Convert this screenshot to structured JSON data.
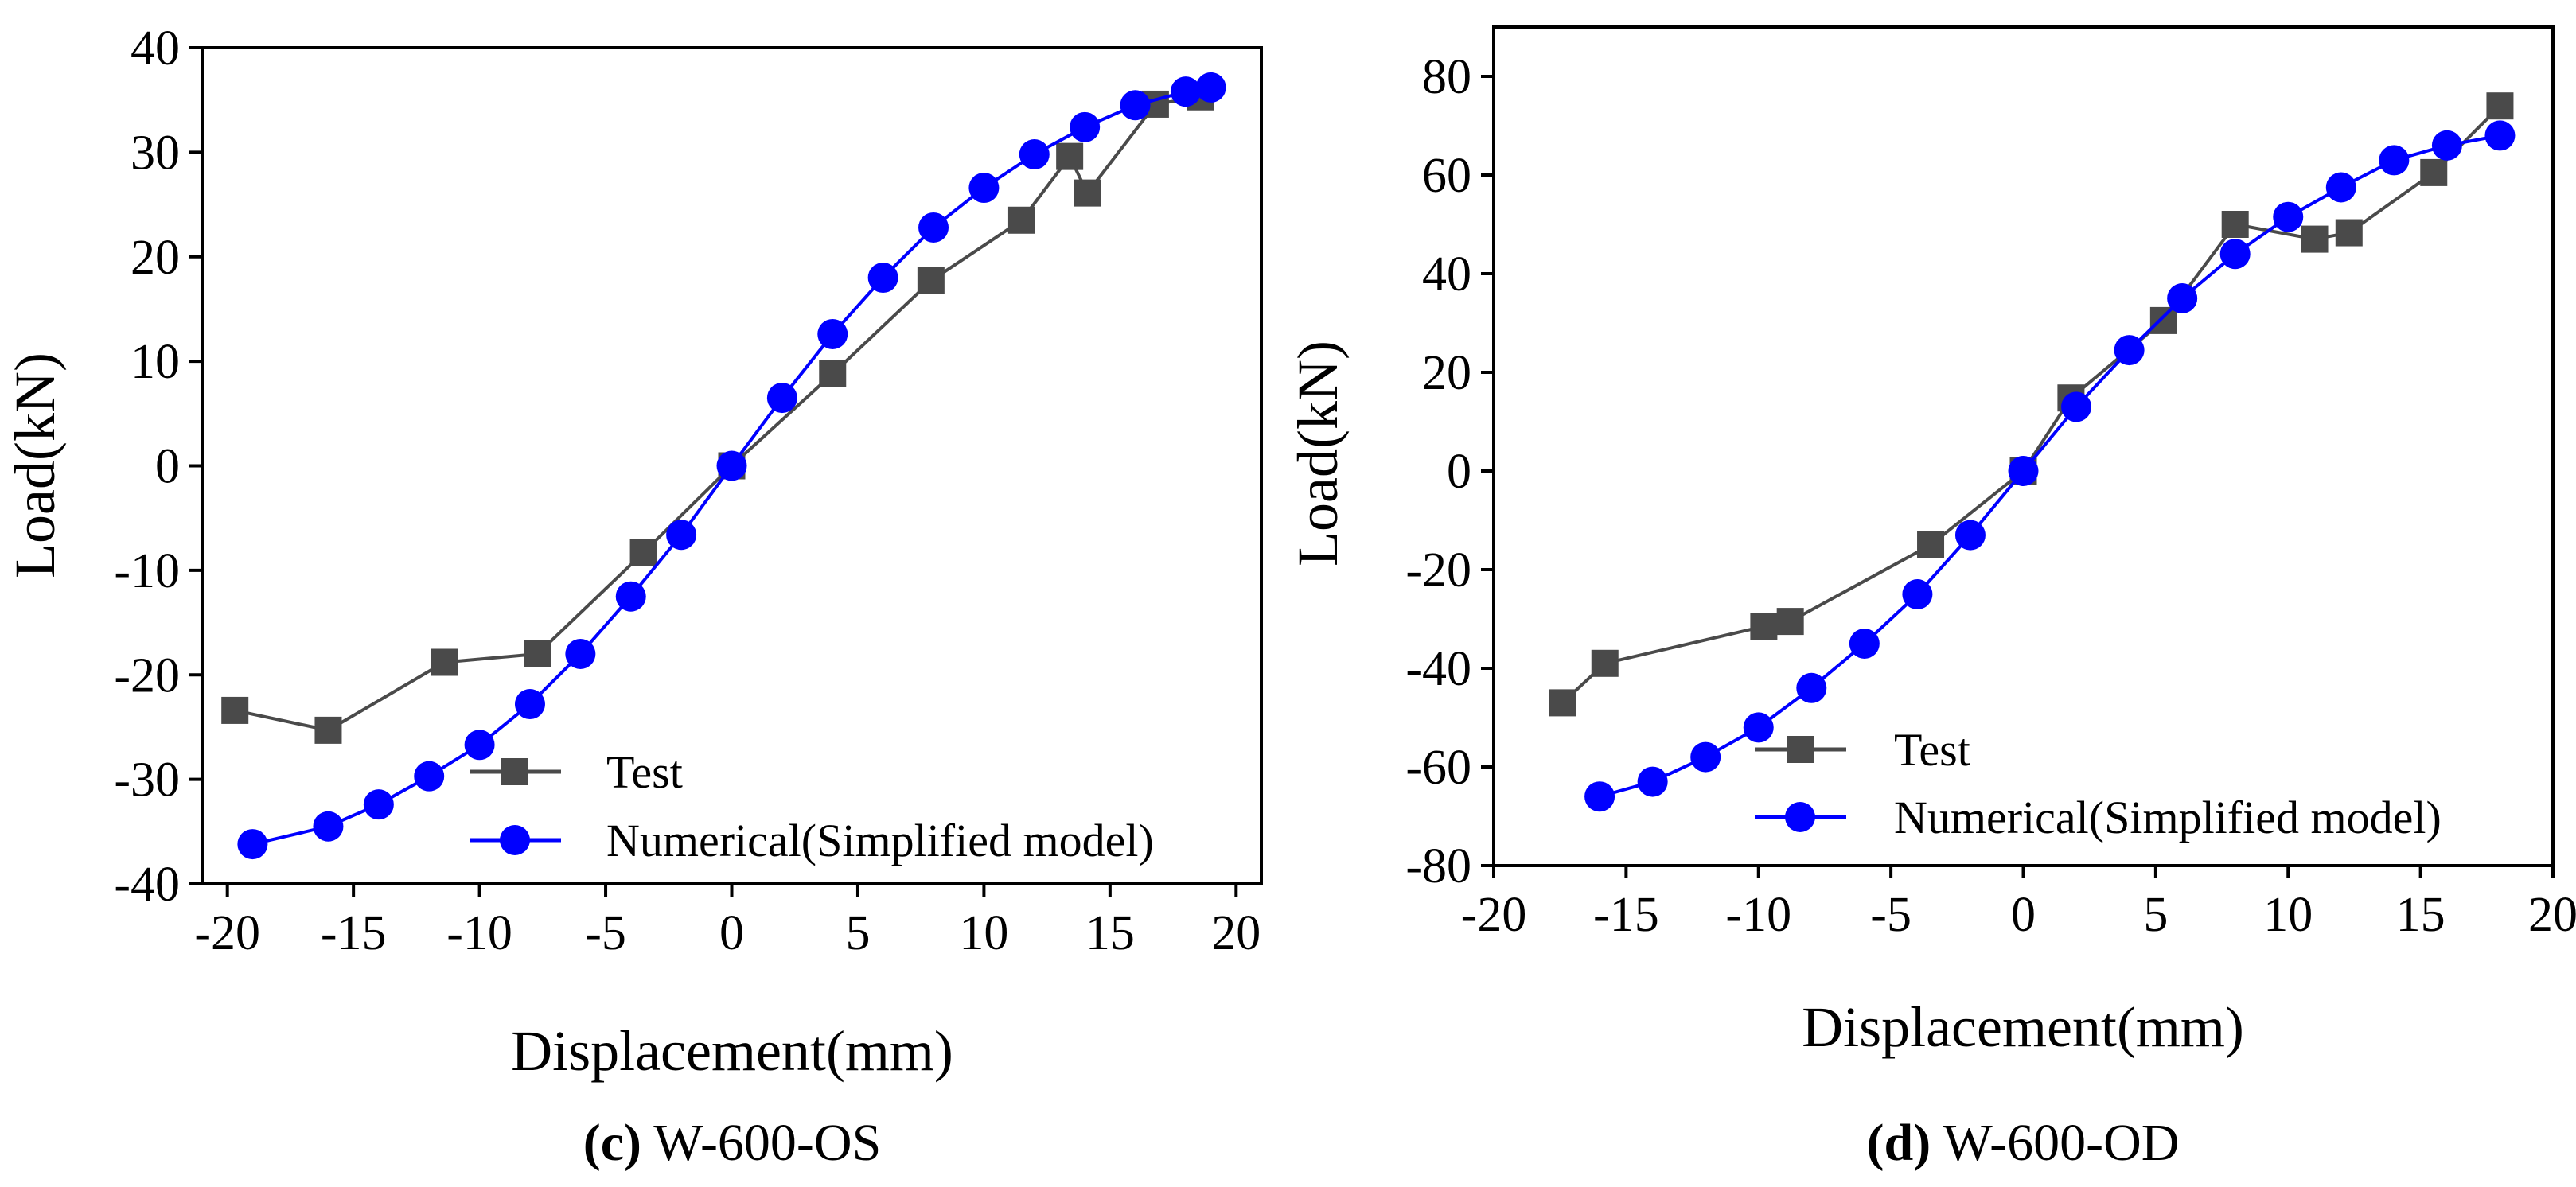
{
  "colors": {
    "test": "#4a4a4a",
    "numerical": "#0000ff",
    "axis": "#000000"
  },
  "chart_data": [
    {
      "type": "line",
      "caption_letter": "(c)",
      "caption_text": " W-600-OS",
      "xlabel": "Displacement(mm)",
      "ylabel": "Load(kN)",
      "xlim": [
        -21,
        21
      ],
      "ylim": [
        -40,
        40
      ],
      "xticks": [
        -20,
        -15,
        -10,
        -5,
        0,
        5,
        10,
        15,
        20
      ],
      "yticks": [
        -40,
        -30,
        -20,
        -10,
        0,
        10,
        20,
        30,
        40
      ],
      "grid": false,
      "legend_position": "bottom-right",
      "series": [
        {
          "name": "Test",
          "marker": "square",
          "color": "#4a4a4a",
          "points": [
            [
              -19.7,
              -23.4
            ],
            [
              -16,
              -25.3
            ],
            [
              -11.4,
              -18.8
            ],
            [
              -7.7,
              -18
            ],
            [
              -3.5,
              -8.3
            ],
            [
              0,
              0
            ],
            [
              4,
              8.8
            ],
            [
              7.9,
              17.7
            ],
            [
              11.5,
              23.5
            ],
            [
              13.4,
              29.6
            ],
            [
              14.1,
              26.1
            ],
            [
              16.8,
              34.6
            ],
            [
              18.6,
              35.3
            ]
          ]
        },
        {
          "name": "Numerical(Simplified model)",
          "marker": "circle",
          "color": "#0000ff",
          "points": [
            [
              -19,
              -36.2
            ],
            [
              -16,
              -34.5
            ],
            [
              -14,
              -32.4
            ],
            [
              -12,
              -29.7
            ],
            [
              -10,
              -26.7
            ],
            [
              -8,
              -22.8
            ],
            [
              -6,
              -18
            ],
            [
              -4,
              -12.5
            ],
            [
              -2,
              -6.6
            ],
            [
              0,
              0
            ],
            [
              2,
              6.5
            ],
            [
              4,
              12.6
            ],
            [
              6,
              18
            ],
            [
              8,
              22.8
            ],
            [
              10,
              26.6
            ],
            [
              12,
              29.8
            ],
            [
              14,
              32.4
            ],
            [
              16,
              34.5
            ],
            [
              18,
              35.8
            ],
            [
              19,
              36.2
            ]
          ]
        }
      ]
    },
    {
      "type": "line",
      "caption_letter": "(d)",
      "caption_text": " W-600-OD",
      "xlabel": "Displacement(mm)",
      "ylabel": "Load(kN)",
      "xlim": [
        -20,
        20
      ],
      "ylim": [
        -80,
        90
      ],
      "xticks": [
        -20,
        -15,
        -10,
        -5,
        0,
        5,
        10,
        15,
        20
      ],
      "yticks": [
        -80,
        -60,
        -40,
        -20,
        0,
        20,
        40,
        60,
        80
      ],
      "grid": false,
      "legend_position": "bottom-right",
      "series": [
        {
          "name": "Test",
          "marker": "square",
          "color": "#4a4a4a",
          "points": [
            [
              -17.4,
              -47
            ],
            [
              -15.8,
              -39
            ],
            [
              -9.8,
              -31.5
            ],
            [
              -8.8,
              -30.5
            ],
            [
              -3.5,
              -15
            ],
            [
              0,
              0
            ],
            [
              1.8,
              14.8
            ],
            [
              5.3,
              30.5
            ],
            [
              8,
              50
            ],
            [
              11,
              47
            ],
            [
              12.3,
              48.3
            ],
            [
              15.5,
              60.5
            ],
            [
              18,
              74
            ]
          ]
        },
        {
          "name": "Numerical(Simplified model)",
          "marker": "circle",
          "color": "#0000ff",
          "points": [
            [
              -16,
              -66
            ],
            [
              -14,
              -63
            ],
            [
              -12,
              -58
            ],
            [
              -10,
              -52
            ],
            [
              -8,
              -44
            ],
            [
              -6,
              -35
            ],
            [
              -4,
              -25
            ],
            [
              -2,
              -13
            ],
            [
              0,
              0
            ],
            [
              2,
              13
            ],
            [
              4,
              24.5
            ],
            [
              6,
              35
            ],
            [
              8,
              44
            ],
            [
              10,
              51.5
            ],
            [
              12,
              57.5
            ],
            [
              14,
              63
            ],
            [
              16,
              66
            ],
            [
              18,
              68
            ]
          ]
        }
      ]
    }
  ]
}
